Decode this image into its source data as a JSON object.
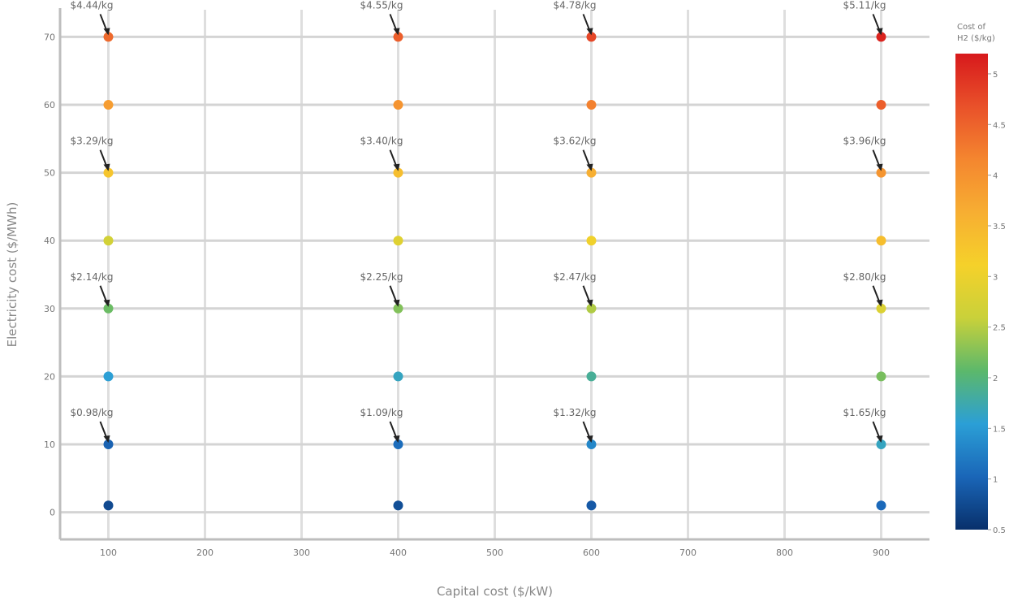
{
  "chart_data": {
    "type": "scatter",
    "title": "",
    "xlabel": "Capital cost ($/kW)",
    "ylabel": "Electricity cost ($/MWh)",
    "xlim": [
      50,
      950
    ],
    "ylim": [
      -4,
      74
    ],
    "x_ticks": [
      100,
      200,
      300,
      400,
      500,
      600,
      700,
      800,
      900
    ],
    "y_ticks": [
      0,
      10,
      20,
      30,
      40,
      50,
      60,
      70
    ],
    "grid": true,
    "colorbar": {
      "title": [
        "Cost of",
        "H2 ($/kg)"
      ],
      "range": [
        0.5,
        5.2
      ],
      "ticks": [
        0.5,
        1,
        1.5,
        2,
        2.5,
        3,
        3.5,
        4,
        4.5,
        5
      ],
      "colorscale": [
        "#08306b",
        "#1a66b8",
        "#2b9fd6",
        "#5cb86b",
        "#c9d13a",
        "#f5d12a",
        "#f7ae32",
        "#f4862f",
        "#e9512a",
        "#d7191c"
      ]
    },
    "points": [
      {
        "x": 100,
        "y": 1,
        "c": 0.75
      },
      {
        "x": 400,
        "y": 1,
        "c": 0.8
      },
      {
        "x": 600,
        "y": 1,
        "c": 0.9
      },
      {
        "x": 900,
        "y": 1,
        "c": 1.05
      },
      {
        "x": 100,
        "y": 10,
        "c": 0.98
      },
      {
        "x": 400,
        "y": 10,
        "c": 1.09
      },
      {
        "x": 600,
        "y": 10,
        "c": 1.32
      },
      {
        "x": 900,
        "y": 10,
        "c": 1.65
      },
      {
        "x": 100,
        "y": 20,
        "c": 1.55
      },
      {
        "x": 400,
        "y": 20,
        "c": 1.65
      },
      {
        "x": 600,
        "y": 20,
        "c": 1.85
      },
      {
        "x": 900,
        "y": 20,
        "c": 2.2
      },
      {
        "x": 100,
        "y": 30,
        "c": 2.14
      },
      {
        "x": 400,
        "y": 30,
        "c": 2.25
      },
      {
        "x": 600,
        "y": 30,
        "c": 2.47
      },
      {
        "x": 900,
        "y": 30,
        "c": 2.8
      },
      {
        "x": 100,
        "y": 40,
        "c": 2.7
      },
      {
        "x": 400,
        "y": 40,
        "c": 2.85
      },
      {
        "x": 600,
        "y": 40,
        "c": 3.05
      },
      {
        "x": 900,
        "y": 40,
        "c": 3.4
      },
      {
        "x": 100,
        "y": 50,
        "c": 3.29
      },
      {
        "x": 400,
        "y": 50,
        "c": 3.4
      },
      {
        "x": 600,
        "y": 50,
        "c": 3.62
      },
      {
        "x": 900,
        "y": 50,
        "c": 3.96
      },
      {
        "x": 100,
        "y": 60,
        "c": 3.85
      },
      {
        "x": 400,
        "y": 60,
        "c": 3.97
      },
      {
        "x": 600,
        "y": 60,
        "c": 4.2
      },
      {
        "x": 900,
        "y": 60,
        "c": 4.55
      },
      {
        "x": 100,
        "y": 70,
        "c": 4.44
      },
      {
        "x": 400,
        "y": 70,
        "c": 4.55
      },
      {
        "x": 600,
        "y": 70,
        "c": 4.78
      },
      {
        "x": 900,
        "y": 70,
        "c": 5.11
      }
    ],
    "annotations": [
      {
        "x": 100,
        "y": 70,
        "text": "$4.44/kg"
      },
      {
        "x": 400,
        "y": 70,
        "text": "$4.55/kg"
      },
      {
        "x": 600,
        "y": 70,
        "text": "$4.78/kg"
      },
      {
        "x": 900,
        "y": 70,
        "text": "$5.11/kg"
      },
      {
        "x": 100,
        "y": 50,
        "text": "$3.29/kg"
      },
      {
        "x": 400,
        "y": 50,
        "text": "$3.40/kg"
      },
      {
        "x": 600,
        "y": 50,
        "text": "$3.62/kg"
      },
      {
        "x": 900,
        "y": 50,
        "text": "$3.96/kg"
      },
      {
        "x": 100,
        "y": 30,
        "text": "$2.14/kg"
      },
      {
        "x": 400,
        "y": 30,
        "text": "$2.25/kg"
      },
      {
        "x": 600,
        "y": 30,
        "text": "$2.47/kg"
      },
      {
        "x": 900,
        "y": 30,
        "text": "$2.80/kg"
      },
      {
        "x": 100,
        "y": 10,
        "text": "$0.98/kg"
      },
      {
        "x": 400,
        "y": 10,
        "text": "$1.09/kg"
      },
      {
        "x": 600,
        "y": 10,
        "text": "$1.32/kg"
      },
      {
        "x": 900,
        "y": 10,
        "text": "$1.65/kg"
      }
    ]
  }
}
